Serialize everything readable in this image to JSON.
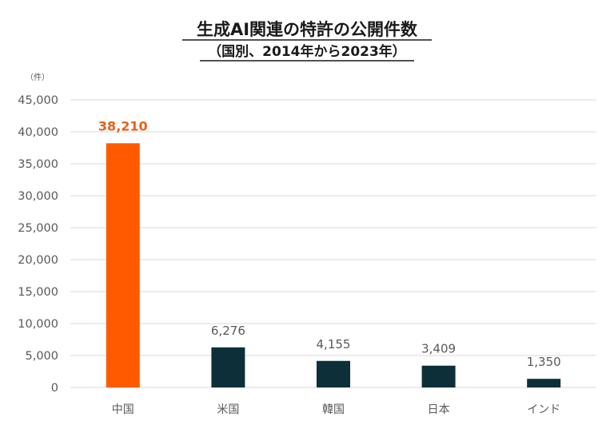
{
  "chart_data": {
    "type": "bar",
    "title": "生成AI関連の特許の公開件数",
    "subtitle": "（国別、2014年から2023年）",
    "unit_label": "（件）",
    "xlabel": "",
    "ylabel": "",
    "categories": [
      "中国",
      "米国",
      "韓国",
      "日本",
      "インド"
    ],
    "values": [
      38210,
      6276,
      4155,
      3409,
      1350
    ],
    "data_labels": [
      "38,210",
      "6,276",
      "4,155",
      "3,409",
      "1,350"
    ],
    "yticks": [
      "0",
      "5,000",
      "10,000",
      "15,000",
      "20,000",
      "25,000",
      "30,000",
      "35,000",
      "40,000",
      "45,000"
    ],
    "ylim": [
      0,
      45000
    ],
    "grid": true,
    "legend": "none",
    "colors": {
      "highlight": "#ff5a00",
      "bar": "#0d3038",
      "highlight_label": "#e2621b",
      "label": "#595959",
      "grid": "#d9d9d9",
      "title": "#1a1a1a"
    }
  }
}
